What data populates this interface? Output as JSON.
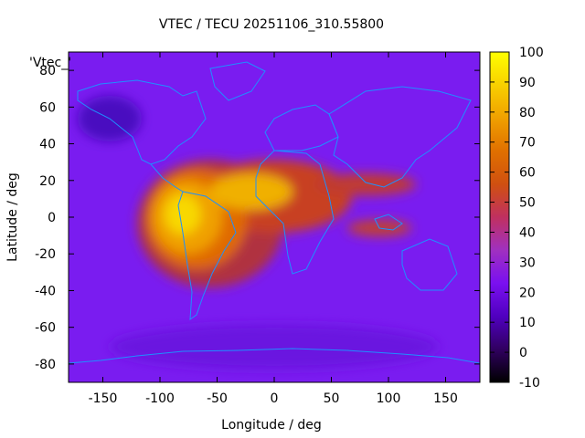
{
  "chart_data": {
    "type": "heatmap",
    "title": "VTEC / TECU 20251106_310.55800",
    "xlabel": "Longitude / deg",
    "ylabel": "Latitude / deg",
    "legend_label": "'Vtec_'",
    "xlim": [
      -180,
      180
    ],
    "ylim": [
      -90,
      90
    ],
    "x_ticks": [
      -150,
      -100,
      -50,
      0,
      50,
      100,
      150
    ],
    "y_ticks": [
      80,
      60,
      40,
      20,
      0,
      -20,
      -40,
      -60,
      -80
    ],
    "colorbar": {
      "range": [
        -10,
        100
      ],
      "ticks": [
        100,
        90,
        80,
        70,
        60,
        50,
        40,
        30,
        20,
        10,
        0,
        -10
      ],
      "colormap": "gnuplot-pm3d"
    },
    "description_field": {
      "background_tecu": 12,
      "peak_region": {
        "lon_center": -70,
        "lat_center": 5,
        "peak_tecu": 95
      },
      "secondary_peaks": [
        {
          "lon": 20,
          "lat": 15,
          "tecu": 88
        },
        {
          "lon": 100,
          "lat": 20,
          "tecu": 55
        },
        {
          "lon": 110,
          "lat": -12,
          "tecu": 50
        }
      ]
    }
  },
  "colors": {
    "coast": "#1e90ff",
    "frame": "#000000"
  }
}
